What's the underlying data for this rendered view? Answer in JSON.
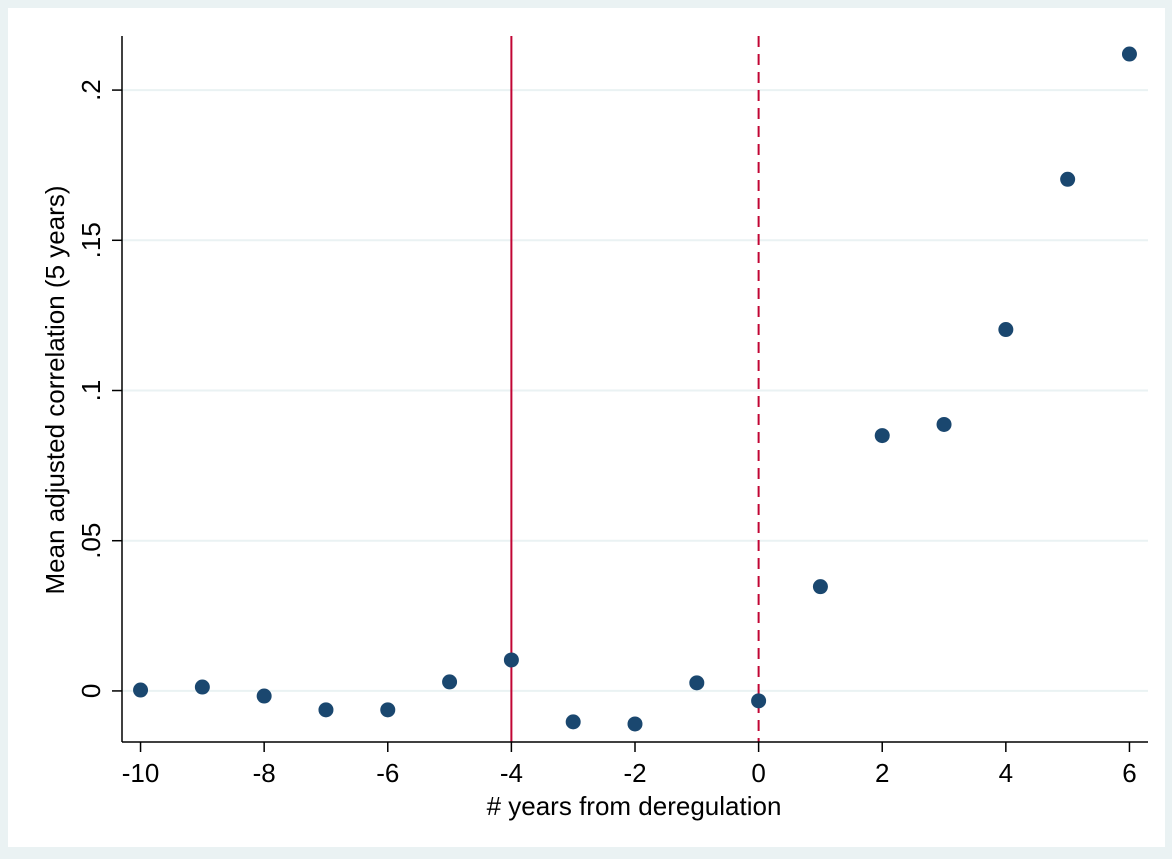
{
  "chart_data": {
    "type": "scatter",
    "title": "",
    "xlabel": "# years from deregulation",
    "ylabel": "Mean adjusted correlation (5 years)",
    "xlim": [
      -10.3,
      6.3
    ],
    "ylim": [
      -0.017,
      0.218
    ],
    "x_ticks": [
      -10,
      -8,
      -6,
      -4,
      -2,
      0,
      2,
      4,
      6
    ],
    "x_tick_labels": [
      "-10",
      "-8",
      "-6",
      "-4",
      "-2",
      "0",
      "2",
      "4",
      "6"
    ],
    "y_ticks": [
      0,
      0.05,
      0.1,
      0.15,
      0.2
    ],
    "y_tick_labels": [
      "0",
      ".05",
      ".1",
      ".15",
      ".2"
    ],
    "grid": "horizontal",
    "series": [
      {
        "x": [
          -10,
          -9,
          -8,
          -7,
          -6,
          -5,
          -4,
          -3,
          -2,
          -1,
          0,
          1,
          2,
          3,
          4,
          5,
          6
        ],
        "y": [
          0.0003,
          0.0013,
          -0.0017,
          -0.0063,
          -0.0063,
          0.003,
          0.0103,
          -0.0103,
          -0.011,
          0.0027,
          -0.0033,
          0.0347,
          0.085,
          0.0887,
          0.1203,
          0.1703,
          0.212
        ]
      }
    ],
    "reference_lines": [
      {
        "x": -4,
        "style": "solid"
      },
      {
        "x": 0,
        "style": "dashed"
      }
    ],
    "colors": {
      "background": "#eaf2f3",
      "plot_background": "#ffffff",
      "marker": "#1a476f",
      "reference_line": "#c10534",
      "grid": "#eaf2f3",
      "axis": "#000000"
    }
  }
}
